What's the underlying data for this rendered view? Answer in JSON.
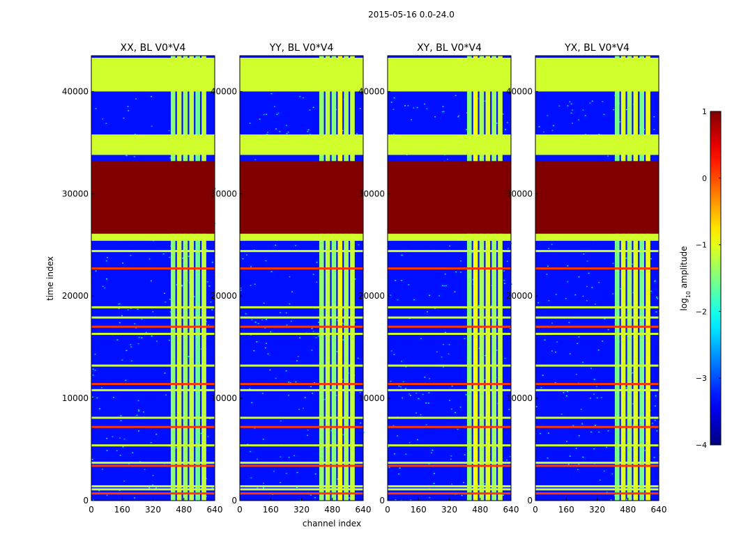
{
  "figure": {
    "suptitle": "2015-05-16 0.0-24.0"
  },
  "chart_data": {
    "type": "heatmap",
    "panels": [
      {
        "title": "XX, BL V0*V4"
      },
      {
        "title": "YY, BL V0*V4"
      },
      {
        "title": "XY, BL V0*V4"
      },
      {
        "title": "YX, BL V0*V4"
      }
    ],
    "xlabel": "channel index",
    "ylabel": "time index",
    "x_ticks": [
      0,
      160,
      320,
      480,
      640
    ],
    "y_ticks": [
      0,
      10000,
      20000,
      30000,
      40000
    ],
    "xlim": [
      0,
      640
    ],
    "ylim": [
      0,
      43500
    ],
    "colorbar": {
      "label": "log10 amplitude",
      "label_base": "log",
      "label_sub": "10",
      "label_rest": " amplitude",
      "ticks": [
        -4,
        -3,
        -2,
        -1,
        0,
        1
      ],
      "vmin": -4,
      "vmax": 1,
      "colormap": "jet"
    },
    "active_channel_band": [
      408,
      600
    ],
    "saturated_time_ranges": [
      [
        26100,
        33200
      ]
    ],
    "bright_time_ranges": [
      [
        40000,
        43300
      ],
      [
        25400,
        26100
      ],
      [
        33800,
        35800
      ]
    ],
    "flagged_time_rows": [
      700,
      1100,
      1400,
      3400,
      3700,
      5400,
      7200,
      8100,
      10800,
      11400,
      13200,
      16300,
      17000,
      17900,
      18900,
      22700,
      24400
    ]
  }
}
